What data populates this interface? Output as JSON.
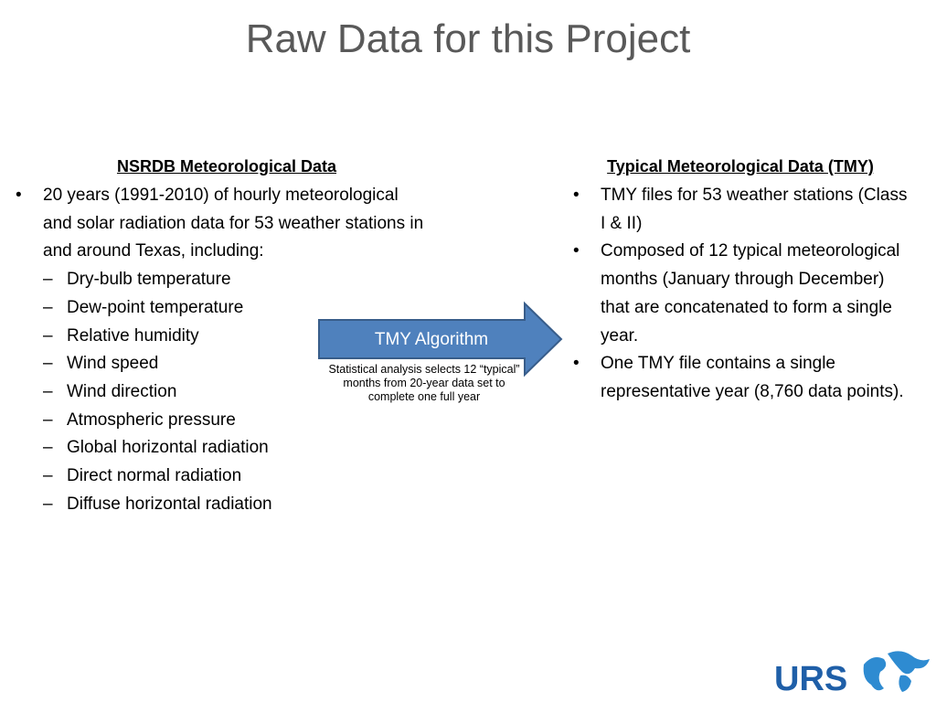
{
  "title": "Raw Data for this Project",
  "left": {
    "heading": "NSRDB Meteorological Data",
    "bullet": "20 years (1991-2010) of hourly meteorological and solar radiation data for 53 weather stations in and around Texas, including:",
    "subitems": [
      "Dry-bulb temperature",
      "Dew-point temperature",
      "Relative humidity",
      "Wind speed",
      "Wind direction",
      "Atmospheric pressure",
      "Global horizontal radiation",
      "Direct normal radiation",
      "Diffuse horizontal radiation"
    ]
  },
  "arrow": {
    "label": "TMY Algorithm",
    "caption": "Statistical analysis selects 12 “typical” months from 20-year data set to complete one full year"
  },
  "right": {
    "heading": "Typical Meteorological Data (TMY)",
    "bullets": [
      "TMY files for 53 weather stations (Class I & II)",
      "Composed of 12 typical meteorological months (January through December) that are concatenated to form a single year.",
      "One TMY file contains a single representative year (8,760 data points)."
    ]
  },
  "logo": {
    "text": "URS"
  }
}
